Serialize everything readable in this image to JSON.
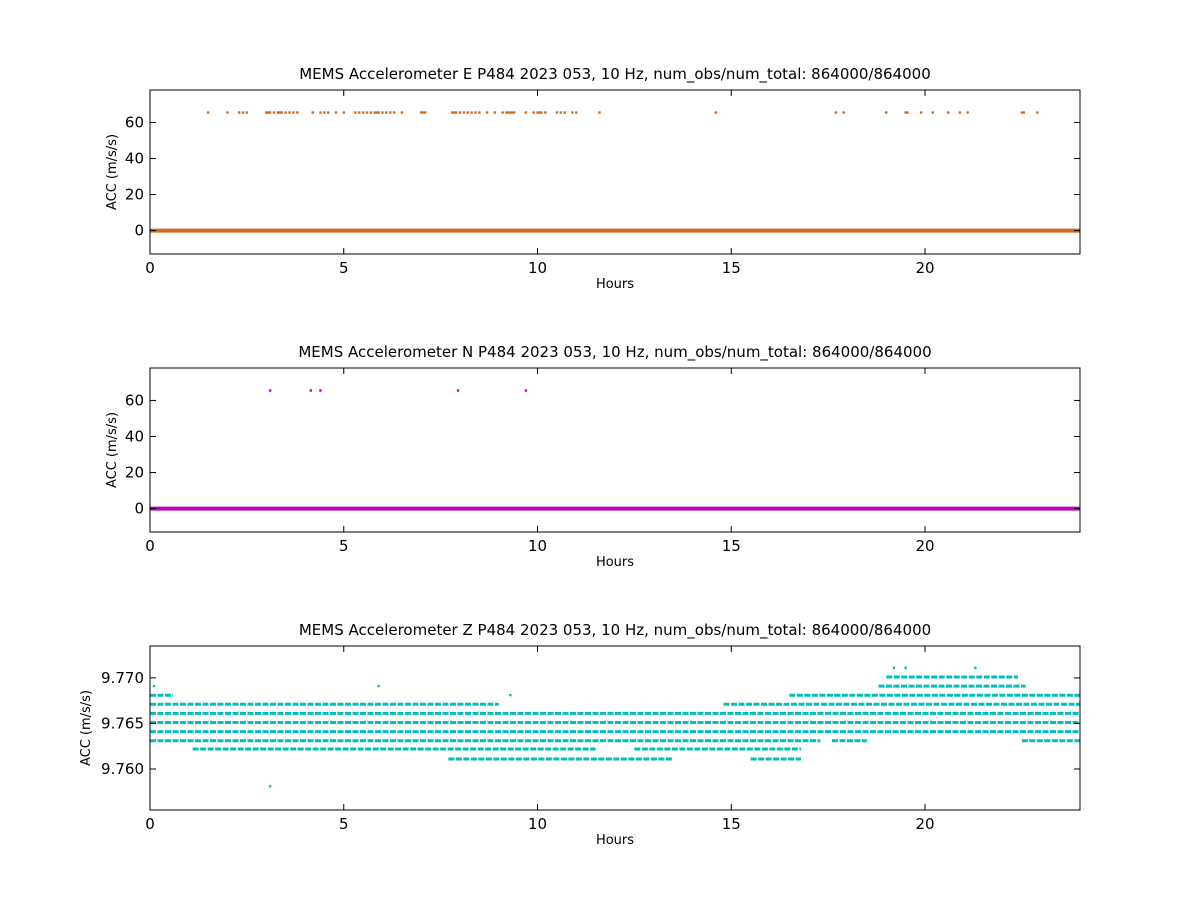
{
  "chart_data": [
    {
      "type": "scatter",
      "title": "MEMS Accelerometer E P484 2023 053, 10 Hz, num_obs/num_total: 864000/864000",
      "xlabel": "Hours",
      "ylabel": "ACC (m/s/s)",
      "xlim": [
        0,
        24
      ],
      "ylim": [
        -13,
        78
      ],
      "xticks": [
        0,
        5,
        10,
        15,
        20
      ],
      "yticks": [
        0,
        20,
        40,
        60
      ],
      "grid": false,
      "color": "#d2691e",
      "baseline": {
        "y": 0,
        "x": [
          0,
          24
        ]
      },
      "series": [
        {
          "values_y": 65.5,
          "x": [
            1.5,
            2.0,
            2.3,
            2.4,
            2.5,
            3.0,
            3.05,
            3.1,
            3.2,
            3.3,
            3.35,
            3.4,
            3.5,
            3.6,
            3.7,
            3.8,
            4.2,
            4.4,
            4.5,
            4.6,
            4.8,
            5.0,
            5.3,
            5.4,
            5.5,
            5.6,
            5.7,
            5.8,
            5.85,
            5.9,
            6.0,
            6.1,
            6.2,
            6.3,
            6.5,
            7.0,
            7.05,
            7.1,
            7.8,
            7.85,
            7.9,
            8.0,
            8.1,
            8.2,
            8.3,
            8.4,
            8.5,
            8.7,
            8.9,
            9.1,
            9.2,
            9.25,
            9.3,
            9.35,
            9.4,
            9.7,
            9.9,
            10.0,
            10.05,
            10.1,
            10.2,
            10.5,
            10.6,
            10.7,
            10.9,
            11.0,
            11.6,
            14.6,
            17.7,
            17.9,
            19.0,
            19.5,
            19.55,
            19.9,
            20.2,
            20.6,
            20.9,
            21.1,
            22.5,
            22.55,
            22.9
          ]
        }
      ]
    },
    {
      "type": "scatter",
      "title": "MEMS Accelerometer N P484 2023 053, 10 Hz, num_obs/num_total: 864000/864000",
      "xlabel": "Hours",
      "ylabel": "ACC (m/s/s)",
      "xlim": [
        0,
        24
      ],
      "ylim": [
        -13,
        78
      ],
      "xticks": [
        0,
        5,
        10,
        15,
        20
      ],
      "yticks": [
        0,
        20,
        40,
        60
      ],
      "grid": false,
      "color": "#bf00bf",
      "baseline": {
        "y": 0,
        "x": [
          0,
          24
        ]
      },
      "series": [
        {
          "values_y": 65.5,
          "x": [
            3.1,
            4.15,
            4.4,
            7.95,
            9.7
          ]
        }
      ]
    },
    {
      "type": "scatter",
      "title": "MEMS Accelerometer Z P484 2023 053, 10 Hz, num_obs/num_total: 864000/864000",
      "xlabel": "Hours",
      "ylabel": "ACC (m/s/s)",
      "xlim": [
        0,
        24
      ],
      "ylim": [
        9.7555,
        9.7735
      ],
      "xticks": [
        0,
        5,
        10,
        15,
        20
      ],
      "yticks": [
        9.76,
        9.765,
        9.77
      ],
      "ytick_labels": [
        "9.760",
        "9.765",
        "9.770"
      ],
      "grid": false,
      "color": "#00bfbf",
      "bands": [
        {
          "y": 9.7622,
          "segments": [
            [
              1.1,
              11.5
            ],
            [
              12.5,
              16.8
            ]
          ]
        },
        {
          "y": 9.7631,
          "segments": [
            [
              0,
              17.3
            ],
            [
              17.6,
              18.5
            ],
            [
              22.5,
              24
            ]
          ]
        },
        {
          "y": 9.7641,
          "segments": [
            [
              0,
              24
            ]
          ]
        },
        {
          "y": 9.7651,
          "segments": [
            [
              0,
              24
            ]
          ]
        },
        {
          "y": 9.7661,
          "segments": [
            [
              0,
              24
            ]
          ]
        },
        {
          "y": 9.7671,
          "segments": [
            [
              0,
              9.0
            ],
            [
              14.8,
              24
            ]
          ]
        },
        {
          "y": 9.7681,
          "segments": [
            [
              0,
              0.6
            ],
            [
              16.5,
              24
            ]
          ]
        },
        {
          "y": 9.7691,
          "segments": [
            [
              18.8,
              22.6
            ]
          ]
        },
        {
          "y": 9.7701,
          "segments": [
            [
              19.0,
              22.4
            ]
          ]
        },
        {
          "y": 9.7611,
          "segments": [
            [
              7.7,
              13.5
            ],
            [
              15.5,
              16.8
            ]
          ]
        }
      ],
      "outliers": [
        {
          "x": 3.1,
          "y": 9.7581
        },
        {
          "x": 5.9,
          "y": 9.7691
        },
        {
          "x": 9.3,
          "y": 9.7681
        },
        {
          "x": 19.2,
          "y": 9.7711
        },
        {
          "x": 19.5,
          "y": 9.7711
        },
        {
          "x": 21.3,
          "y": 9.7711
        },
        {
          "x": 0.1,
          "y": 9.7691
        }
      ]
    }
  ]
}
